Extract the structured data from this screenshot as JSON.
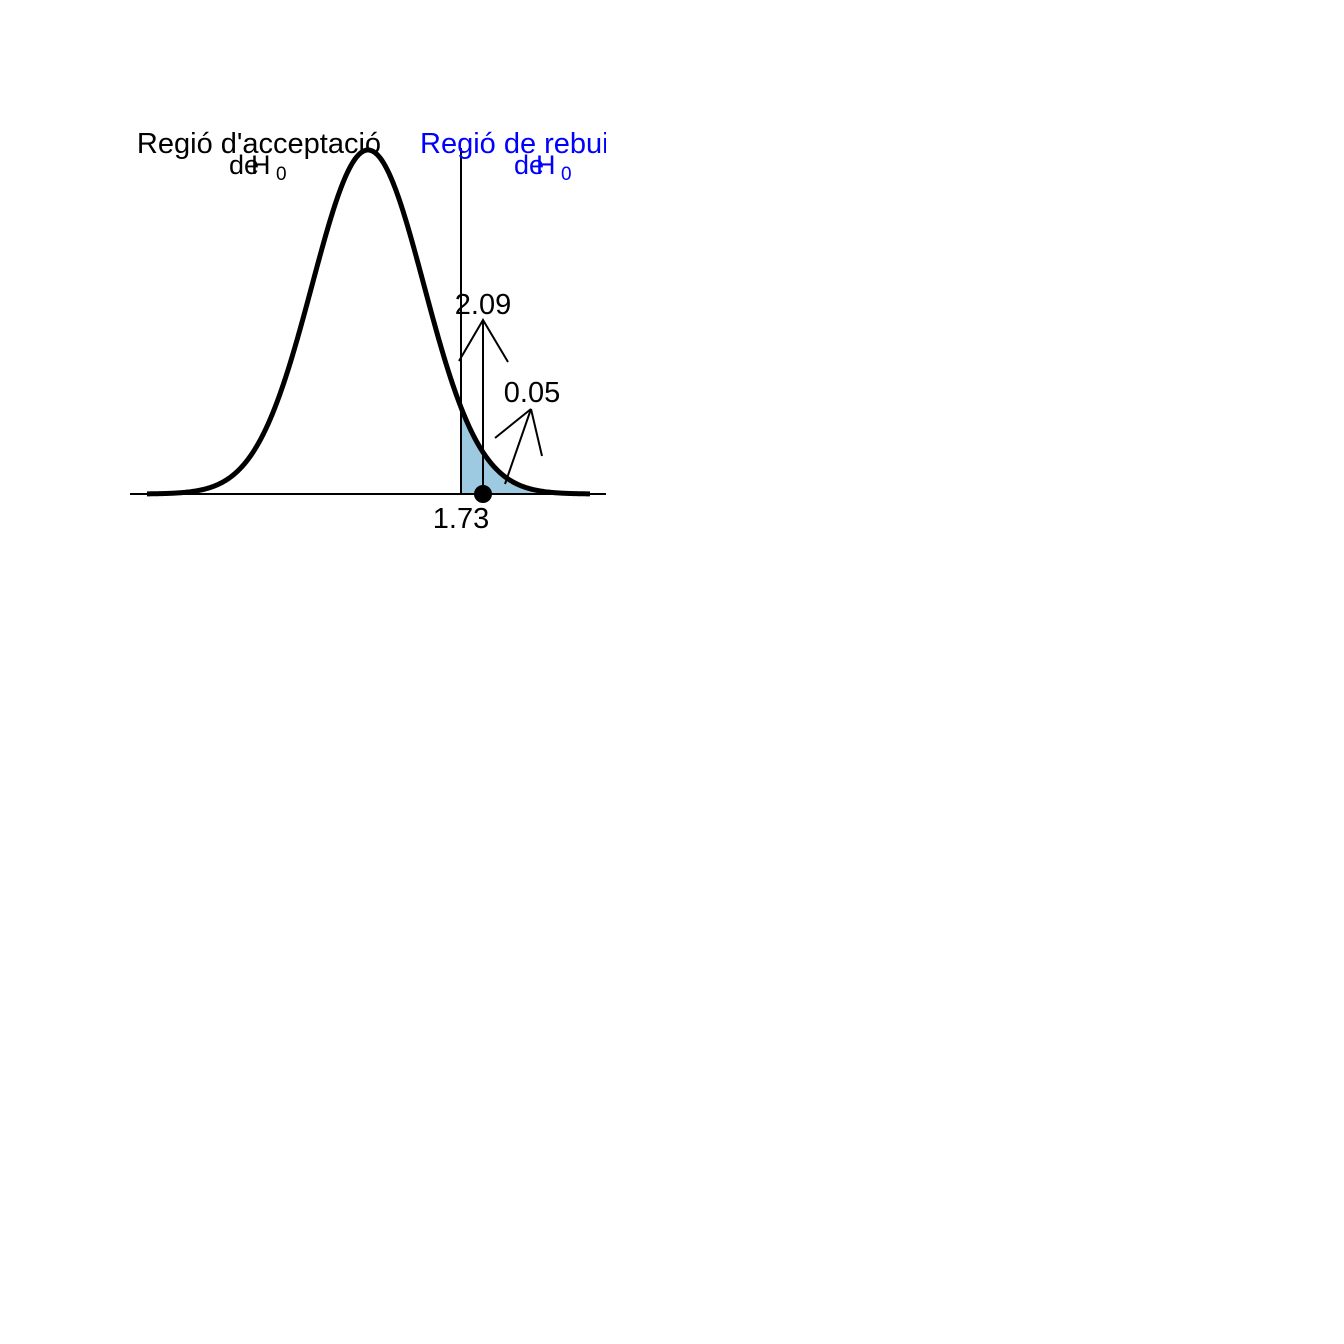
{
  "regions": {
    "acceptance": {
      "line1": "Regió d'acceptació",
      "line2_prefix": "de",
      "symbol": "H",
      "subscript": "0"
    },
    "rejection": {
      "line1": "Regió de rebuig",
      "line2_prefix": "de",
      "symbol": "H",
      "subscript": "0"
    }
  },
  "labels": {
    "critical_value": "1.73",
    "observed_statistic": "2.09",
    "alpha": "0.05"
  },
  "colors": {
    "acceptance_text": "#000000",
    "rejection_text": "#0000ff",
    "tail_fill": "#9ecae1",
    "curve": "#000000"
  }
}
